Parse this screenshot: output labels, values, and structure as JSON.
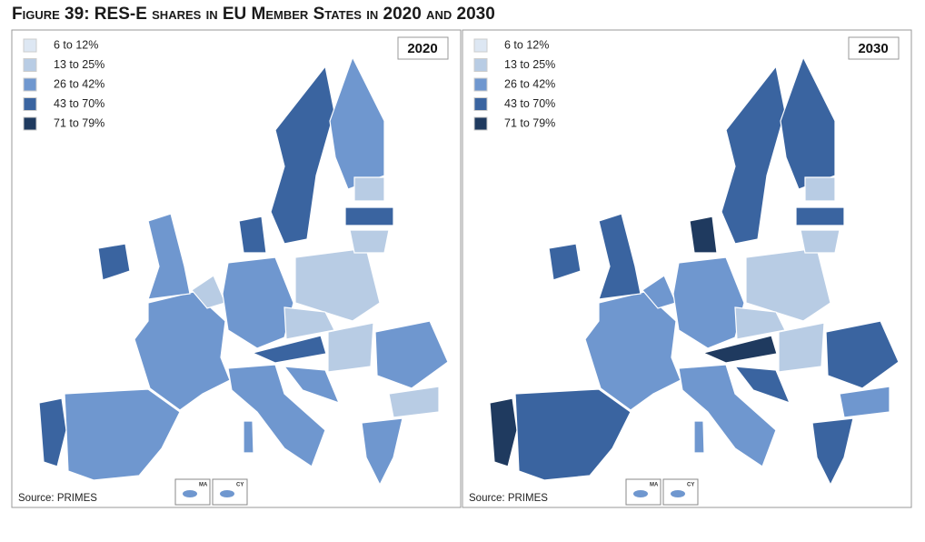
{
  "title": "Figure 39: RES-E shares in EU Member States in 2020 and 2030",
  "legend": [
    {
      "label": "6 to 12%",
      "color": "#dde7f3"
    },
    {
      "label": "13 to 25%",
      "color": "#b8cce4"
    },
    {
      "label": "26 to 42%",
      "color": "#6f97cf"
    },
    {
      "label": "43 to 70%",
      "color": "#3a64a0"
    },
    {
      "label": "71 to 79%",
      "color": "#1f3a5f"
    }
  ],
  "panels": [
    {
      "year": "2020",
      "source": "Source: PRIMES",
      "insets": [
        "MA",
        "CY"
      ]
    },
    {
      "year": "2030",
      "source": "Source: PRIMES",
      "insets": [
        "MA",
        "CY"
      ]
    }
  ]
}
